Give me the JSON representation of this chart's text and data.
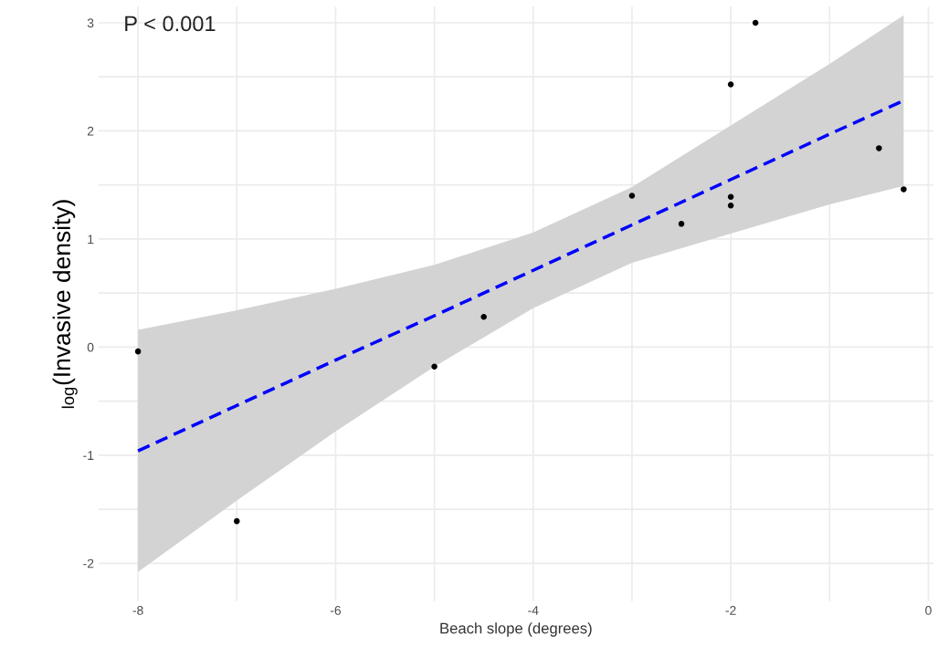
{
  "chart_data": {
    "type": "scatter",
    "xlabel": "Beach slope (degrees)",
    "ylabel": "$_{log}$(Invasive density)",
    "annotations": [
      "P < 0.001"
    ],
    "series": [
      {
        "color": "#000000",
        "marker": "circle",
        "x": [
          -8,
          -7,
          -5,
          -4.5,
          -3,
          -2.5,
          -2,
          -2,
          -2,
          -1.75,
          -0.5,
          -0.25
        ],
        "values": [
          -0.04,
          -1.61,
          -0.18,
          0.28,
          1.4,
          1.14,
          2.43,
          1.39,
          1.31,
          3.0,
          1.84,
          1.46
        ]
      },
      {
        "type": "line",
        "color": "#0000ff",
        "line_style": "dashed",
        "x": [
          -8,
          -7,
          -6,
          -5,
          -4,
          -3,
          -2,
          -1,
          -0.25
        ],
        "values": [
          -0.96,
          -0.54,
          -0.12,
          0.29,
          0.71,
          1.13,
          1.55,
          1.97,
          2.28
        ],
        "lower": [
          -2.08,
          -1.42,
          -0.78,
          -0.18,
          0.36,
          0.78,
          1.05,
          1.32,
          1.49
        ],
        "upper": [
          0.16,
          0.34,
          0.54,
          0.76,
          1.06,
          1.48,
          2.05,
          2.62,
          3.07
        ]
      }
    ],
    "xlim": [
      -8.4,
      0.05
    ],
    "ylim": [
      -2.35,
      3.15
    ],
    "xticks": [
      -8,
      {
        "value": -7,
        "label": null
      },
      -6,
      {
        "value": -5,
        "label": null
      },
      -4,
      {
        "value": -3,
        "label": null
      },
      -2,
      {
        "value": -1,
        "label": null
      },
      0
    ],
    "yticks": [
      -2,
      {
        "value": -1.5,
        "label": null
      },
      -1,
      {
        "value": -0.5,
        "label": null
      },
      0,
      {
        "value": 0.5,
        "label": null
      },
      1,
      {
        "value": 1.5,
        "label": null
      },
      2,
      {
        "value": 2.5,
        "label": null
      },
      3
    ],
    "grid": true,
    "legend": false
  }
}
